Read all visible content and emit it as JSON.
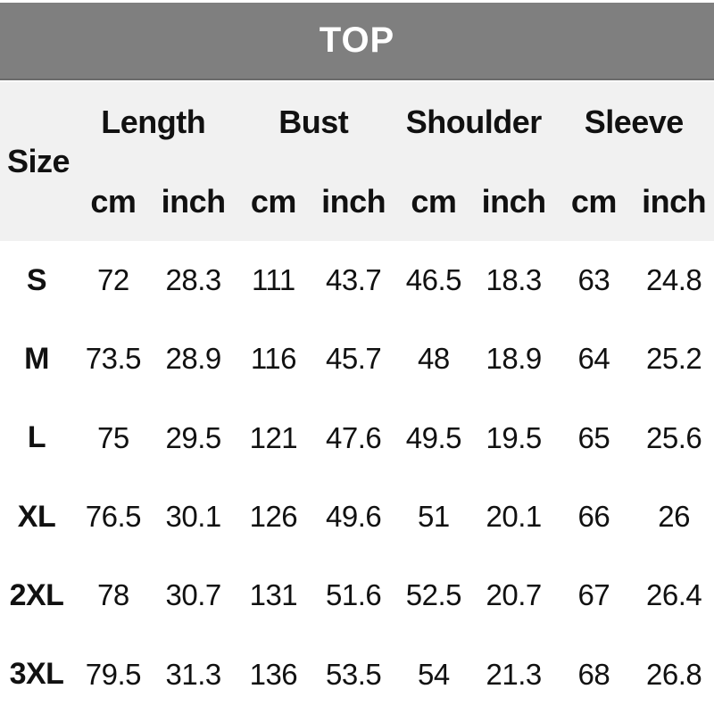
{
  "title_bar": {
    "label": "TOP"
  },
  "table": {
    "size_header": "Size",
    "groups": [
      "Length",
      "Bust",
      "Shoulder",
      "Sleeve"
    ],
    "unit_headers": [
      "cm",
      "inch",
      "cm",
      "inch",
      "cm",
      "inch",
      "cm",
      "inch"
    ],
    "rows": [
      {
        "size": "S",
        "values": [
          "72",
          "28.3",
          "111",
          "43.7",
          "46.5",
          "18.3",
          "63",
          "24.8"
        ]
      },
      {
        "size": "M",
        "values": [
          "73.5",
          "28.9",
          "116",
          "45.7",
          "48",
          "18.9",
          "64",
          "25.2"
        ]
      },
      {
        "size": "L",
        "values": [
          "75",
          "29.5",
          "121",
          "47.6",
          "49.5",
          "19.5",
          "65",
          "25.6"
        ]
      },
      {
        "size": "XL",
        "values": [
          "76.5",
          "30.1",
          "126",
          "49.6",
          "51",
          "20.1",
          "66",
          "26"
        ]
      },
      {
        "size": "2XL",
        "values": [
          "78",
          "30.7",
          "131",
          "51.6",
          "52.5",
          "20.7",
          "67",
          "26.4"
        ]
      },
      {
        "size": "3XL",
        "values": [
          "79.5",
          "31.3",
          "136",
          "53.5",
          "54",
          "21.3",
          "68",
          "26.8"
        ]
      }
    ]
  },
  "colors": {
    "title_bar_bg": "#7f7f7f",
    "title_text": "#ffffff",
    "header_band_bg": "#f1f1f1",
    "body_bg": "#ffffff",
    "text": "#111111"
  },
  "chart_data": {
    "type": "table",
    "title": "TOP",
    "columns": [
      "Size",
      "Length (cm)",
      "Length (inch)",
      "Bust (cm)",
      "Bust (inch)",
      "Shoulder (cm)",
      "Shoulder (inch)",
      "Sleeve (cm)",
      "Sleeve (inch)"
    ],
    "rows": [
      [
        "S",
        72,
        28.3,
        111,
        43.7,
        46.5,
        18.3,
        63,
        24.8
      ],
      [
        "M",
        73.5,
        28.9,
        116,
        45.7,
        48,
        18.9,
        64,
        25.2
      ],
      [
        "L",
        75,
        29.5,
        121,
        47.6,
        49.5,
        19.5,
        65,
        25.6
      ],
      [
        "XL",
        76.5,
        30.1,
        126,
        49.6,
        51,
        20.1,
        66,
        26
      ],
      [
        "2XL",
        78,
        30.7,
        131,
        51.6,
        52.5,
        20.7,
        67,
        26.4
      ],
      [
        "3XL",
        79.5,
        31.3,
        136,
        53.5,
        54,
        21.3,
        68,
        26.8
      ]
    ],
    "layout": {
      "header_levels": 2,
      "gridlines": false,
      "title_position": "top-banner"
    }
  }
}
